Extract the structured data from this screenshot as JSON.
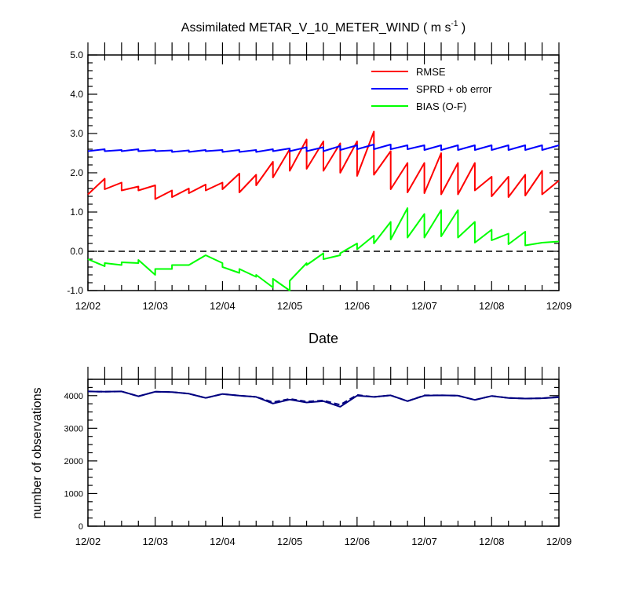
{
  "chart_data": [
    {
      "type": "line",
      "title": "Assimilated METAR_V_10_METER_WIND ( m s",
      "title_sup": "-1",
      "title_end": " )",
      "xlabel": "Date",
      "ylabel": "",
      "x_ticks": [
        "12/02",
        "12/03",
        "12/04",
        "12/05",
        "12/06",
        "12/07",
        "12/08",
        "12/09"
      ],
      "xlim": [
        0,
        7
      ],
      "ylim": [
        -1.0,
        5.0
      ],
      "y_ticks": [
        "5.0",
        "4.0",
        "3.0",
        "2.0",
        "1.0",
        "0.0",
        "-1.0"
      ],
      "y_tick_values": [
        5,
        4,
        3,
        2,
        1,
        0,
        -1
      ],
      "zero_line": "dashed",
      "legend_position": "top-right",
      "colors": {
        "rmse": "#ff0000",
        "sprd": "#0000ff",
        "bias": "#00ff00"
      },
      "series": [
        {
          "name": "RMSE",
          "color": "#ff0000",
          "points": [
            [
              0,
              1.45
            ],
            [
              0.25,
              1.85
            ],
            [
              0.25,
              1.58
            ],
            [
              0.5,
              1.75
            ],
            [
              0.5,
              1.55
            ],
            [
              0.75,
              1.65
            ],
            [
              0.75,
              1.55
            ],
            [
              1,
              1.68
            ],
            [
              1,
              1.33
            ],
            [
              1.25,
              1.55
            ],
            [
              1.25,
              1.38
            ],
            [
              1.5,
              1.6
            ],
            [
              1.5,
              1.48
            ],
            [
              1.75,
              1.7
            ],
            [
              1.75,
              1.55
            ],
            [
              2,
              1.75
            ],
            [
              2,
              1.58
            ],
            [
              2.25,
              1.98
            ],
            [
              2.25,
              1.5
            ],
            [
              2.5,
              1.95
            ],
            [
              2.5,
              1.68
            ],
            [
              2.75,
              2.28
            ],
            [
              2.75,
              1.88
            ],
            [
              3,
              2.6
            ],
            [
              3,
              2.05
            ],
            [
              3.25,
              2.85
            ],
            [
              3.25,
              2.1
            ],
            [
              3.5,
              2.8
            ],
            [
              3.5,
              2.05
            ],
            [
              3.75,
              2.75
            ],
            [
              3.75,
              2.0
            ],
            [
              4,
              2.8
            ],
            [
              4,
              1.92
            ],
            [
              4.25,
              3.05
            ],
            [
              4.25,
              1.95
            ],
            [
              4.5,
              2.55
            ],
            [
              4.5,
              1.58
            ],
            [
              4.75,
              2.25
            ],
            [
              4.75,
              1.5
            ],
            [
              5,
              2.25
            ],
            [
              5,
              1.48
            ],
            [
              5.25,
              2.5
            ],
            [
              5.25,
              1.45
            ],
            [
              5.5,
              2.25
            ],
            [
              5.5,
              1.45
            ],
            [
              5.75,
              2.25
            ],
            [
              5.75,
              1.55
            ],
            [
              6,
              1.9
            ],
            [
              6,
              1.4
            ],
            [
              6.25,
              1.9
            ],
            [
              6.25,
              1.38
            ],
            [
              6.5,
              1.95
            ],
            [
              6.5,
              1.42
            ],
            [
              6.75,
              2.05
            ],
            [
              6.75,
              1.45
            ],
            [
              7,
              1.8
            ]
          ]
        },
        {
          "name": "SPRD + ob error",
          "color": "#0000ff",
          "points": [
            [
              0,
              2.55
            ],
            [
              0.25,
              2.6
            ],
            [
              0.25,
              2.55
            ],
            [
              0.5,
              2.58
            ],
            [
              0.5,
              2.55
            ],
            [
              0.75,
              2.6
            ],
            [
              0.75,
              2.55
            ],
            [
              1,
              2.58
            ],
            [
              1,
              2.55
            ],
            [
              1.25,
              2.57
            ],
            [
              1.25,
              2.53
            ],
            [
              1.5,
              2.57
            ],
            [
              1.5,
              2.53
            ],
            [
              1.75,
              2.58
            ],
            [
              1.75,
              2.55
            ],
            [
              2,
              2.58
            ],
            [
              2,
              2.53
            ],
            [
              2.25,
              2.58
            ],
            [
              2.25,
              2.53
            ],
            [
              2.5,
              2.58
            ],
            [
              2.5,
              2.53
            ],
            [
              2.75,
              2.6
            ],
            [
              2.75,
              2.55
            ],
            [
              3,
              2.62
            ],
            [
              3,
              2.55
            ],
            [
              3.25,
              2.65
            ],
            [
              3.25,
              2.55
            ],
            [
              3.5,
              2.65
            ],
            [
              3.5,
              2.55
            ],
            [
              3.75,
              2.68
            ],
            [
              3.75,
              2.58
            ],
            [
              4,
              2.7
            ],
            [
              4,
              2.6
            ],
            [
              4.25,
              2.72
            ],
            [
              4.25,
              2.6
            ],
            [
              4.5,
              2.72
            ],
            [
              4.5,
              2.6
            ],
            [
              4.75,
              2.7
            ],
            [
              4.75,
              2.6
            ],
            [
              5,
              2.7
            ],
            [
              5,
              2.58
            ],
            [
              5.25,
              2.7
            ],
            [
              5.25,
              2.58
            ],
            [
              5.5,
              2.7
            ],
            [
              5.5,
              2.58
            ],
            [
              5.75,
              2.7
            ],
            [
              5.75,
              2.58
            ],
            [
              6,
              2.7
            ],
            [
              6,
              2.58
            ],
            [
              6.25,
              2.7
            ],
            [
              6.25,
              2.58
            ],
            [
              6.5,
              2.7
            ],
            [
              6.5,
              2.58
            ],
            [
              6.75,
              2.7
            ],
            [
              6.75,
              2.58
            ],
            [
              7,
              2.7
            ]
          ]
        },
        {
          "name": "BIAS (O-F)",
          "color": "#00ff00",
          "points": [
            [
              0,
              -0.2
            ],
            [
              0.25,
              -0.38
            ],
            [
              0.25,
              -0.3
            ],
            [
              0.5,
              -0.35
            ],
            [
              0.5,
              -0.28
            ],
            [
              0.75,
              -0.3
            ],
            [
              0.75,
              -0.22
            ],
            [
              1,
              -0.6
            ],
            [
              1,
              -0.45
            ],
            [
              1.25,
              -0.45
            ],
            [
              1.25,
              -0.35
            ],
            [
              1.5,
              -0.35
            ],
            [
              1.5,
              -0.35
            ],
            [
              1.75,
              -0.1
            ],
            [
              1.75,
              -0.1
            ],
            [
              2,
              -0.3
            ],
            [
              2,
              -0.4
            ],
            [
              2.25,
              -0.55
            ],
            [
              2.25,
              -0.45
            ],
            [
              2.5,
              -0.65
            ],
            [
              2.5,
              -0.6
            ],
            [
              2.75,
              -0.92
            ],
            [
              2.75,
              -0.7
            ],
            [
              3,
              -1.0
            ],
            [
              3,
              -0.75
            ],
            [
              3.25,
              -0.3
            ],
            [
              3.25,
              -0.35
            ],
            [
              3.5,
              -0.05
            ],
            [
              3.5,
              -0.2
            ],
            [
              3.75,
              -0.1
            ],
            [
              3.75,
              -0.05
            ],
            [
              4,
              0.2
            ],
            [
              4,
              0.05
            ],
            [
              4.25,
              0.4
            ],
            [
              4.25,
              0.2
            ],
            [
              4.5,
              0.75
            ],
            [
              4.5,
              0.3
            ],
            [
              4.75,
              1.1
            ],
            [
              4.75,
              0.35
            ],
            [
              5,
              0.95
            ],
            [
              5,
              0.35
            ],
            [
              5.25,
              1.05
            ],
            [
              5.25,
              0.38
            ],
            [
              5.5,
              1.05
            ],
            [
              5.5,
              0.35
            ],
            [
              5.75,
              0.75
            ],
            [
              5.75,
              0.22
            ],
            [
              6,
              0.55
            ],
            [
              6,
              0.28
            ],
            [
              6.25,
              0.45
            ],
            [
              6.25,
              0.18
            ],
            [
              6.5,
              0.5
            ],
            [
              6.5,
              0.15
            ],
            [
              6.75,
              0.22
            ],
            [
              7,
              0.25
            ]
          ]
        }
      ]
    },
    {
      "type": "line",
      "title": "",
      "xlabel": "",
      "ylabel": "number of observations",
      "x_ticks": [
        "12/02",
        "12/03",
        "12/04",
        "12/05",
        "12/06",
        "12/07",
        "12/08",
        "12/09"
      ],
      "xlim": [
        0,
        7
      ],
      "ylim": [
        0,
        4500
      ],
      "y_ticks": [
        "4000",
        "3000",
        "2000",
        "1000",
        "0"
      ],
      "y_tick_values": [
        4000,
        3000,
        2000,
        1000,
        0
      ],
      "series": [
        {
          "color": "#000080",
          "dash": "solid",
          "points": [
            [
              0,
              4130
            ],
            [
              0.25,
              4120
            ],
            [
              0.5,
              4130
            ],
            [
              0.75,
              3980
            ],
            [
              1,
              4120
            ],
            [
              1.25,
              4110
            ],
            [
              1.5,
              4060
            ],
            [
              1.75,
              3930
            ],
            [
              2,
              4050
            ],
            [
              2.25,
              4000
            ],
            [
              2.5,
              3960
            ],
            [
              2.75,
              3760
            ],
            [
              3,
              3880
            ],
            [
              3.25,
              3790
            ],
            [
              3.5,
              3830
            ],
            [
              3.75,
              3660
            ],
            [
              4,
              4000
            ],
            [
              4.25,
              3960
            ],
            [
              4.5,
              4010
            ],
            [
              4.75,
              3830
            ],
            [
              5,
              4000
            ],
            [
              5.25,
              4010
            ],
            [
              5.5,
              4000
            ],
            [
              5.75,
              3870
            ],
            [
              6,
              3990
            ],
            [
              6.25,
              3930
            ],
            [
              6.5,
              3910
            ],
            [
              6.75,
              3920
            ],
            [
              7,
              3950
            ]
          ]
        },
        {
          "color": "#000080",
          "dash": "dashed",
          "points": [
            [
              0,
              4130
            ],
            [
              0.25,
              4120
            ],
            [
              0.5,
              4130
            ],
            [
              0.75,
              3980
            ],
            [
              1,
              4120
            ],
            [
              1.25,
              4110
            ],
            [
              1.5,
              4060
            ],
            [
              1.75,
              3930
            ],
            [
              2,
              4050
            ],
            [
              2.25,
              4000
            ],
            [
              2.5,
              3960
            ],
            [
              2.75,
              3800
            ],
            [
              3,
              3900
            ],
            [
              3.25,
              3820
            ],
            [
              3.5,
              3850
            ],
            [
              3.75,
              3720
            ],
            [
              4,
              4020
            ],
            [
              4.25,
              3960
            ],
            [
              4.5,
              4010
            ],
            [
              4.75,
              3830
            ],
            [
              5,
              4010
            ],
            [
              5.25,
              4010
            ],
            [
              5.5,
              4000
            ],
            [
              5.75,
              3870
            ],
            [
              6,
              3990
            ],
            [
              6.25,
              3930
            ],
            [
              6.5,
              3910
            ],
            [
              6.75,
              3920
            ],
            [
              7,
              3960
            ]
          ]
        }
      ]
    }
  ]
}
